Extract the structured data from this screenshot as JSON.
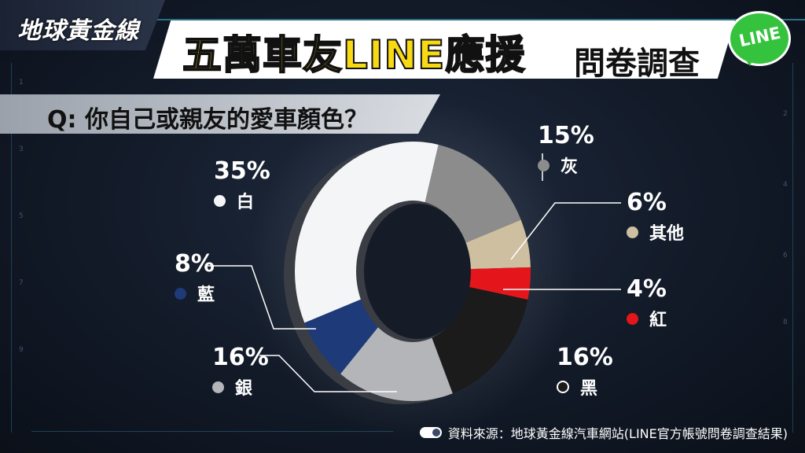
{
  "header": {
    "logo": "地球黃金線",
    "title_main": "五萬車友LINE應援",
    "title_sub": "問卷調查",
    "line_badge": "LINE"
  },
  "question": "Q: 你自己或親友的愛車顏色？",
  "source": "資料來源：地球黃金線汽車網站(LINE官方帳號問卷調查結果)",
  "colors": {
    "white": "#f4f5f7",
    "gray": "#8c8c8c",
    "other": "#cdbfa0",
    "red": "#e4161c",
    "black": "#1b1b1b",
    "silver": "#b3b5b9",
    "blue": "#1e3a78",
    "title_yellow": "#f7d914",
    "line_green": "#35c33d"
  },
  "chart_data": {
    "type": "pie",
    "title": "Q: 你自己或親友的愛車顏色？",
    "slices": [
      {
        "label": "白",
        "value": 35,
        "display": "35%",
        "color": "#f4f5f7"
      },
      {
        "label": "灰",
        "value": 15,
        "display": "15%",
        "color": "#8c8c8c"
      },
      {
        "label": "其他",
        "value": 6,
        "display": "6%",
        "color": "#cdbfa0"
      },
      {
        "label": "紅",
        "value": 4,
        "display": "4%",
        "color": "#e4161c"
      },
      {
        "label": "黑",
        "value": 16,
        "display": "16%",
        "color": "#1b1b1b"
      },
      {
        "label": "銀",
        "value": 16,
        "display": "16%",
        "color": "#b3b5b9"
      },
      {
        "label": "藍",
        "value": 8,
        "display": "8%",
        "color": "#1e3a78"
      }
    ]
  }
}
